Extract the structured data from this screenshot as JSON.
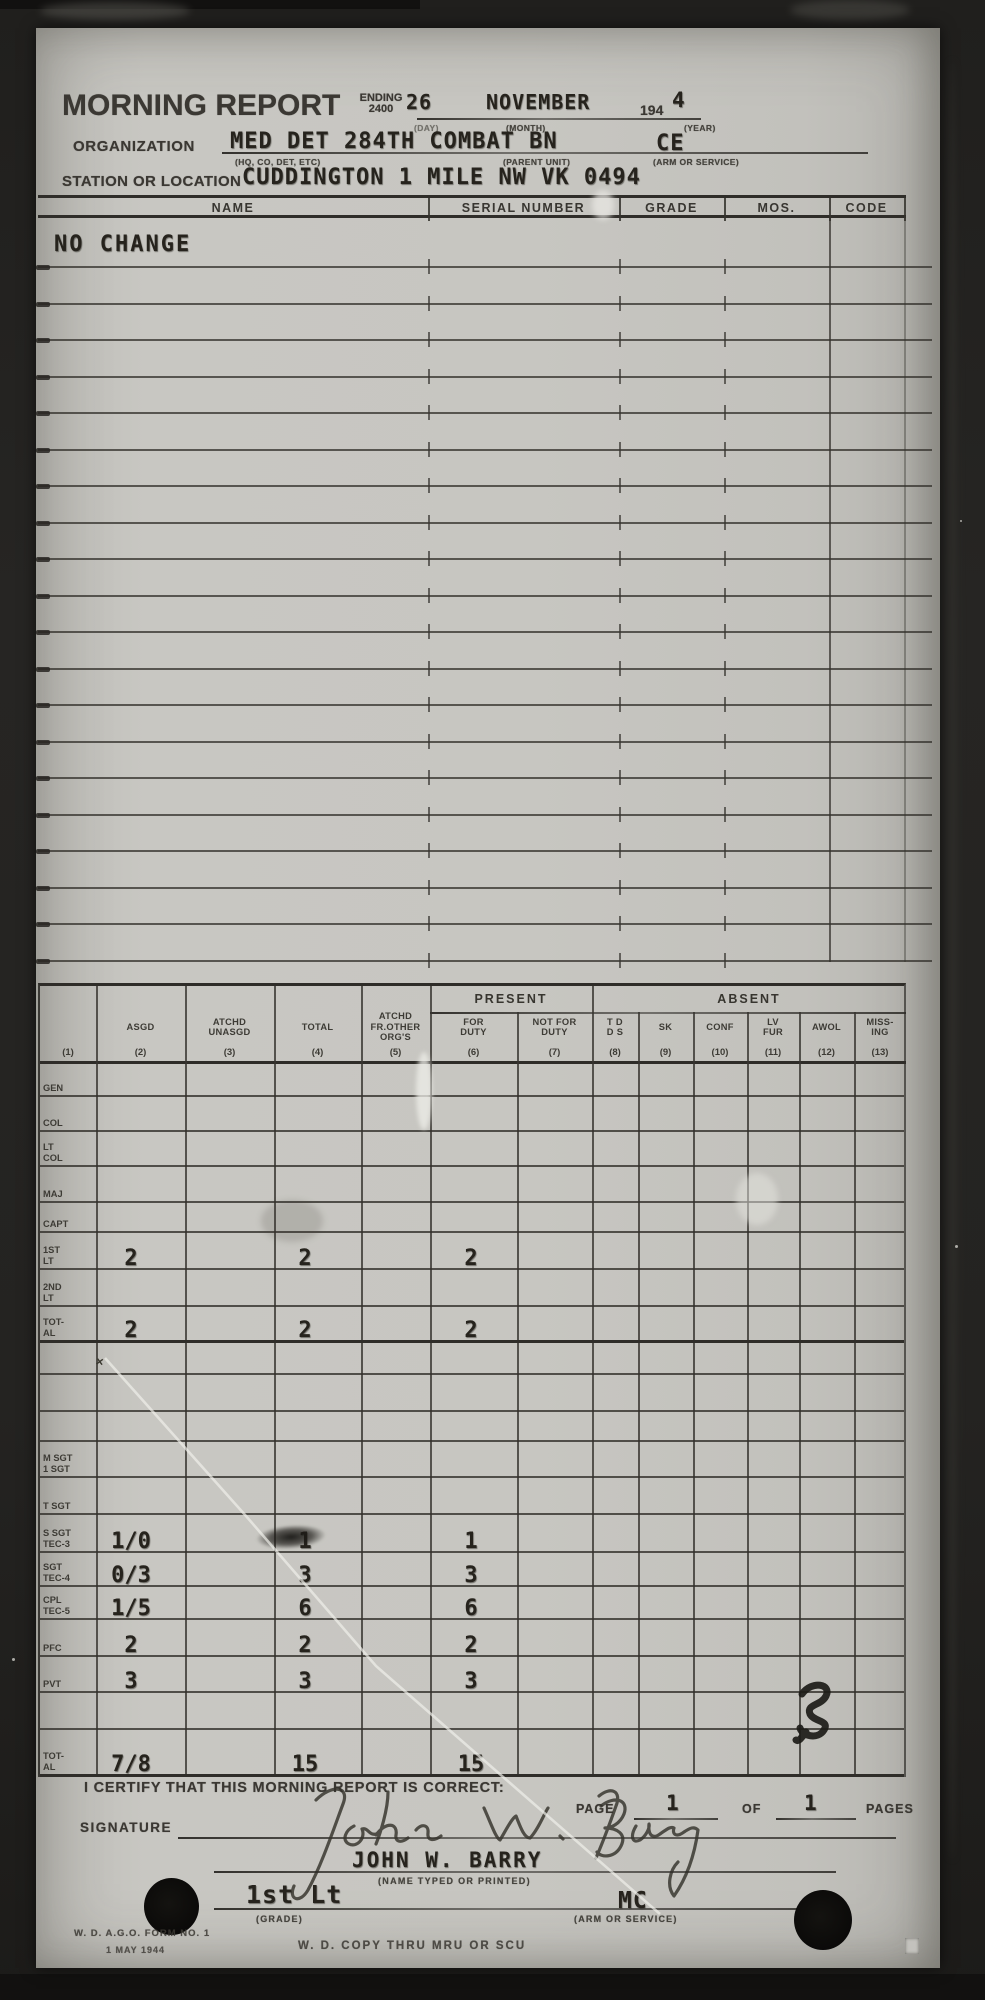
{
  "header": {
    "title": "MORNING REPORT",
    "ending_label": "ENDING",
    "ending_time": "2400",
    "day": "26",
    "month": "NOVEMBER",
    "year_prefix": "194",
    "year_typed": "4",
    "day_label": "(DAY)",
    "month_label": "(MONTH)",
    "year_label": "(YEAR)",
    "organization_label": "ORGANIZATION",
    "organization_value": "MED DET 284TH COMBAT BN",
    "organization_arm": "CE",
    "org_sub_left": "(HQ, CO, DET, ETC)",
    "org_sub_mid": "(PARENT UNIT)",
    "org_sub_right": "(ARM OR SERVICE)",
    "station_label": "STATION OR LOCATION",
    "station_value": "CUDDINGTON 1 MILE NW VK 0494"
  },
  "roster": {
    "columns": [
      "NAME",
      "SERIAL NUMBER",
      "GRADE",
      "MOS.",
      "CODE"
    ],
    "first_row_entry": "NO CHANGE",
    "empty_row_count": 19
  },
  "summary": {
    "group_present": "PRESENT",
    "group_absent": "ABSENT",
    "columns": [
      {
        "num": "(1)",
        "label": ""
      },
      {
        "num": "(2)",
        "label": "ASGD"
      },
      {
        "num": "(3)",
        "label": "ATCHD\nUNASGD"
      },
      {
        "num": "(4)",
        "label": "TOTAL"
      },
      {
        "num": "(5)",
        "label": "ATCHD\nFR.OTHER\nORG'S"
      },
      {
        "num": "(6)",
        "label": "FOR\nDUTY"
      },
      {
        "num": "(7)",
        "label": "NOT FOR\nDUTY"
      },
      {
        "num": "(8)",
        "label": "T D\nD S"
      },
      {
        "num": "(9)",
        "label": "SK"
      },
      {
        "num": "(10)",
        "label": "CONF"
      },
      {
        "num": "(11)",
        "label": "LV\nFUR"
      },
      {
        "num": "(12)",
        "label": "AWOL"
      },
      {
        "num": "(13)",
        "label": "MISS-\nING"
      }
    ],
    "rows": [
      {
        "label": "GEN",
        "asgd": "",
        "total": "",
        "for_duty": ""
      },
      {
        "label": "COL",
        "asgd": "",
        "total": "",
        "for_duty": ""
      },
      {
        "label": "LT\nCOL",
        "asgd": "",
        "total": "",
        "for_duty": ""
      },
      {
        "label": "MAJ",
        "asgd": "",
        "total": "",
        "for_duty": ""
      },
      {
        "label": "CAPT",
        "asgd": "",
        "total": "",
        "for_duty": ""
      },
      {
        "label": "1ST\nLT",
        "asgd": "2",
        "total": "2",
        "for_duty": "2"
      },
      {
        "label": "2ND\nLT",
        "asgd": "",
        "total": "",
        "for_duty": ""
      },
      {
        "label": "TOT-\nAL",
        "asgd": "2",
        "total": "2",
        "for_duty": "2"
      },
      {
        "label": "",
        "asgd": "",
        "total": "",
        "for_duty": "",
        "stray_mark": "x"
      },
      {
        "label": "",
        "asgd": "",
        "total": "",
        "for_duty": ""
      },
      {
        "label": "",
        "asgd": "",
        "total": "",
        "for_duty": ""
      },
      {
        "label": "M SGT\n1 SGT",
        "asgd": "",
        "total": "",
        "for_duty": ""
      },
      {
        "label": "T SGT",
        "asgd": "",
        "total": "",
        "for_duty": ""
      },
      {
        "label": "S SGT\nTEC-3",
        "asgd": "1/0",
        "total": "1",
        "for_duty": "1",
        "total_smudged": true
      },
      {
        "label": "SGT\nTEC-4",
        "asgd": "0/3",
        "total": "3",
        "for_duty": "3"
      },
      {
        "label": "CPL\nTEC-5",
        "asgd": "1/5",
        "total": "6",
        "for_duty": "6"
      },
      {
        "label": "PFC",
        "asgd": "2",
        "total": "2",
        "for_duty": "2"
      },
      {
        "label": "PVT",
        "asgd": "3",
        "total": "3",
        "for_duty": "3"
      },
      {
        "label": "",
        "asgd": "",
        "total": "",
        "for_duty": "",
        "ink_scribble": true
      },
      {
        "label": "TOT-\nAL",
        "asgd": "7/8",
        "total": "15",
        "for_duty": "15"
      }
    ]
  },
  "certification": {
    "statement": "I CERTIFY THAT THIS MORNING REPORT IS CORRECT:",
    "page_label": "PAGE",
    "page_number": "1",
    "of_label": "OF",
    "total_pages": "1",
    "pages_label": "PAGES",
    "signature_label": "SIGNATURE",
    "signature_script": "John W. Barry",
    "name_typed": "JOHN W. BARRY",
    "name_typed_label": "(NAME TYPED OR PRINTED)",
    "grade_value": "1st Lt",
    "grade_label": "(GRADE)",
    "arm_value": "MC",
    "arm_label": "(ARM OR SERVICE)"
  },
  "footer": {
    "form_line1": "W. D. A.G.O. FORM NO. 1",
    "form_line2": "1 MAY 1944",
    "copy_note": "W. D. COPY THRU MRU OR SCU"
  },
  "colors": {
    "paper": "#c6c5c0",
    "ink_typed": "#26231d",
    "ink_printed": "#3b3833",
    "scan_background": "#232220"
  }
}
